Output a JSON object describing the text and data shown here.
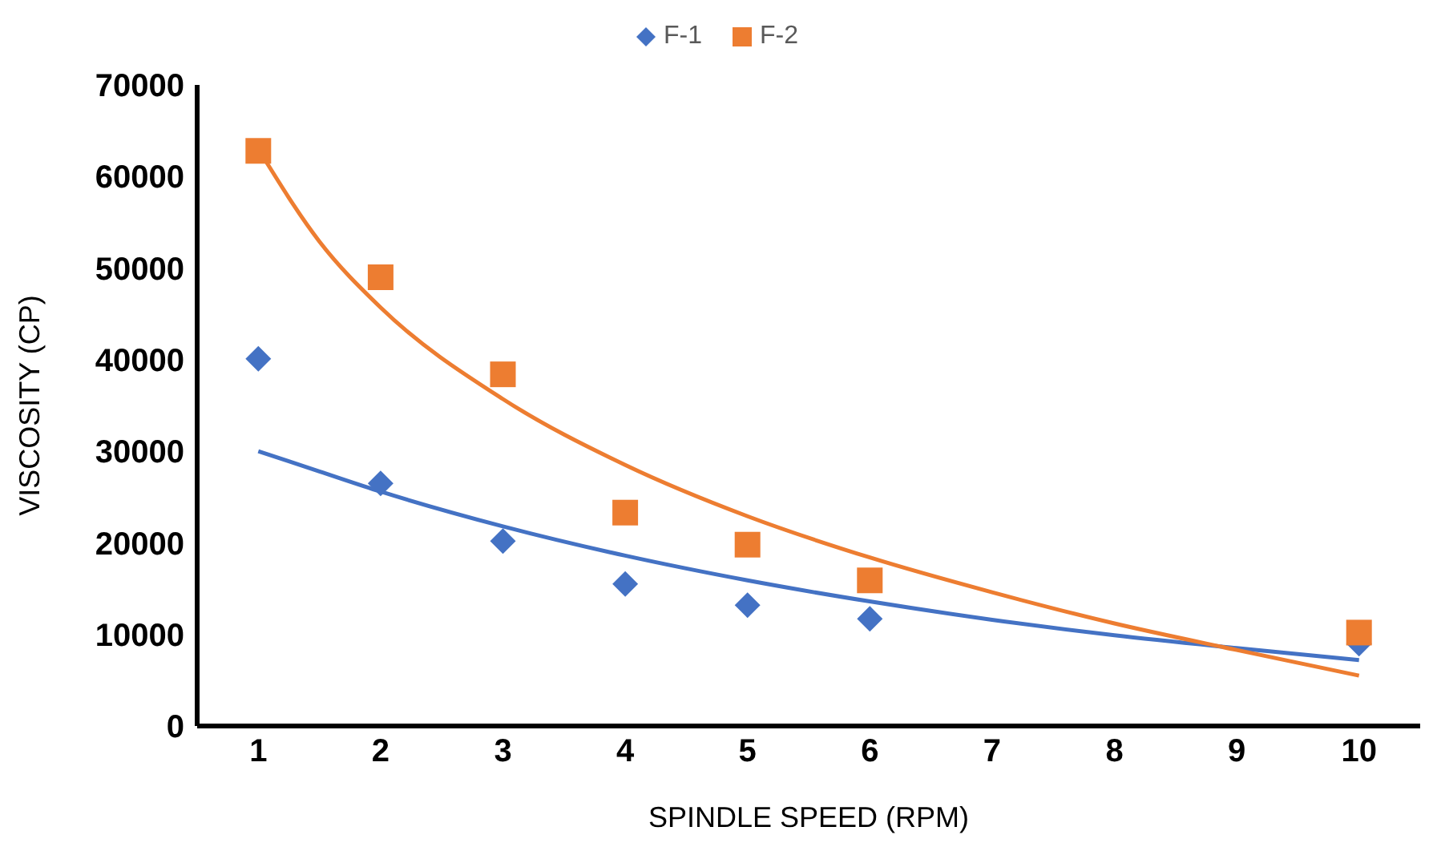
{
  "chart_data": {
    "type": "scatter",
    "xlabel": "SPINDLE SPEED (RPM)",
    "ylabel": "VISCOSITY (CP)",
    "x": [
      1,
      2,
      3,
      4,
      5,
      6,
      10
    ],
    "xlim": [
      0.5,
      10.5
    ],
    "xticks": [
      1,
      2,
      3,
      4,
      5,
      6,
      7,
      8,
      9,
      10
    ],
    "ylim": [
      0,
      70000
    ],
    "yticks": [
      0,
      10000,
      20000,
      30000,
      40000,
      50000,
      60000,
      70000
    ],
    "grid": false,
    "legend": "top",
    "series": [
      {
        "name": "F-1",
        "color": "#4472c4",
        "marker": "diamond",
        "values": [
          40100,
          26500,
          20200,
          15500,
          13200,
          11700,
          9000
        ]
      },
      {
        "name": "F-2",
        "color": "#ed7d31",
        "marker": "square",
        "values": [
          62800,
          49000,
          38400,
          23300,
          19800,
          15900,
          10200
        ]
      },
      {
        "type": "line",
        "color": "#4472c4",
        "marker": "none",
        "x": [
          1,
          1.5,
          2,
          3,
          4,
          5,
          6,
          7,
          8,
          9,
          10
        ],
        "values": [
          30000,
          27800,
          25600,
          21800,
          18600,
          15900,
          13600,
          11600,
          9900,
          8500,
          7200
        ]
      },
      {
        "type": "line",
        "color": "#ed7d31",
        "marker": "none",
        "x": [
          1,
          1.5,
          2,
          3,
          4,
          5,
          6,
          7,
          8,
          9,
          10
        ],
        "values": [
          63000,
          52900,
          45700,
          35700,
          28500,
          22900,
          18400,
          14600,
          11200,
          8300,
          5500
        ]
      }
    ]
  }
}
